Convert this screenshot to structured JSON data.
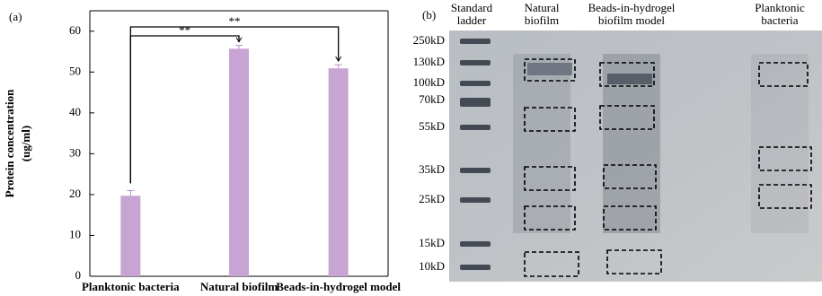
{
  "chart_data": {
    "type": "bar",
    "panel_label": "(a)",
    "ylabel": [
      "Protein concentration",
      "(ug/ml)"
    ],
    "categories": [
      "Planktonic bacteria",
      "Natural biofilm",
      "Beads-in-hydrogel model"
    ],
    "values": [
      19.7,
      55.7,
      50.9
    ],
    "errors": [
      1.3,
      0.8,
      0.9
    ],
    "color": "#c8a4d4",
    "ylim": [
      0,
      65
    ],
    "yticks": [
      0,
      10,
      20,
      30,
      40,
      50,
      60
    ],
    "annotations": [
      "**",
      "**"
    ]
  },
  "gel": {
    "panel_label": "(b)",
    "lanes": [
      [
        "Standard",
        "ladder"
      ],
      [
        "Natural",
        "biofilm"
      ],
      [
        "Beads-in-hydrogel",
        "biofilm model"
      ],
      [
        "Planktonic",
        "bacteria"
      ]
    ],
    "markers": [
      "250kD",
      "130kD",
      "100kD",
      "70kD",
      "55kD",
      "35kD",
      "25kD",
      "15kD",
      "10kD"
    ]
  }
}
